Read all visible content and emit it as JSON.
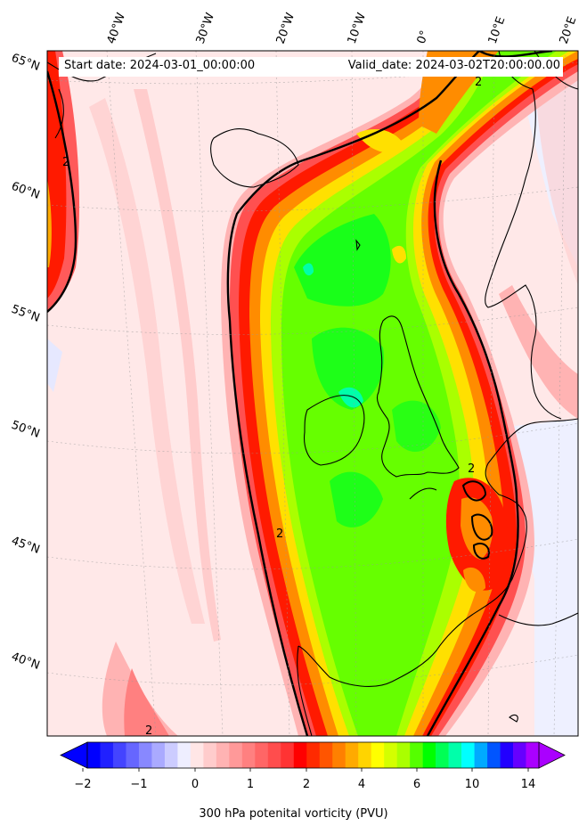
{
  "header": {
    "start_label": "Start date: 2024-03-01_00:00:00",
    "valid_label": "Valid_date: 2024-03-02T20:00:00.00"
  },
  "map": {
    "lon_labels": [
      "40°W",
      "30°W",
      "20°W",
      "10°W",
      "0°",
      "10°E",
      "20°E"
    ],
    "lat_labels": [
      "65°N",
      "60°N",
      "55°N",
      "50°N",
      "45°N",
      "40°N"
    ],
    "contour_label": "2",
    "contour_level_pvu": 2,
    "region": "North Atlantic and Western Europe"
  },
  "colorbar": {
    "title": "300 hPa potenital vorticity (PVU)",
    "tick_labels": [
      "−2",
      "−1",
      "0",
      "1",
      "2",
      "4",
      "6",
      "10",
      "14"
    ],
    "colors": [
      "#0000ff",
      "#2020ff",
      "#4444ff",
      "#6666ff",
      "#8888ff",
      "#aaaaff",
      "#ccccff",
      "#eeeeff",
      "#ffe6e6",
      "#ffcccc",
      "#ffb3b3",
      "#ff9999",
      "#ff8080",
      "#ff6666",
      "#ff4d4d",
      "#ff3333",
      "#ff0000",
      "#ff2a00",
      "#ff5500",
      "#ff8000",
      "#ffaa00",
      "#ffd400",
      "#ffff00",
      "#d4ff00",
      "#aaff00",
      "#55ff00",
      "#00ff00",
      "#00ff55",
      "#00ffaa",
      "#00ffff",
      "#00aaff",
      "#0055ff",
      "#2200ff",
      "#6600ff",
      "#aa00ff"
    ],
    "extend": "both"
  }
}
